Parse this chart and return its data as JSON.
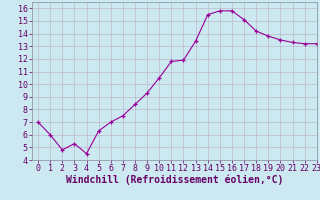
{
  "x": [
    0,
    1,
    2,
    3,
    4,
    5,
    6,
    7,
    8,
    9,
    10,
    11,
    12,
    13,
    14,
    15,
    16,
    17,
    18,
    19,
    20,
    21,
    22,
    23
  ],
  "y": [
    7.0,
    6.0,
    4.8,
    5.3,
    4.5,
    6.3,
    7.0,
    7.5,
    8.4,
    9.3,
    10.5,
    11.8,
    11.9,
    13.4,
    15.5,
    15.8,
    15.8,
    15.1,
    14.2,
    13.8,
    13.5,
    13.3,
    13.2,
    13.2
  ],
  "xlim": [
    -0.5,
    23
  ],
  "ylim": [
    4,
    16.5
  ],
  "yticks": [
    4,
    5,
    6,
    7,
    8,
    9,
    10,
    11,
    12,
    13,
    14,
    15,
    16
  ],
  "xticks": [
    0,
    1,
    2,
    3,
    4,
    5,
    6,
    7,
    8,
    9,
    10,
    11,
    12,
    13,
    14,
    15,
    16,
    17,
    18,
    19,
    20,
    21,
    22,
    23
  ],
  "xlabel": "Windchill (Refroidissement éolien,°C)",
  "line_color": "#990099",
  "marker": "+",
  "bg_color": "#cce8f0",
  "grid_color": "#bbbbcc",
  "tick_label_fontsize": 6.0,
  "xlabel_fontsize": 7.0
}
